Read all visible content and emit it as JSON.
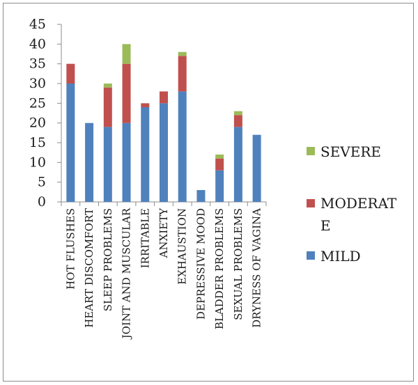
{
  "chart_data": {
    "type": "bar",
    "stacked": true,
    "categories": [
      "HOT FLUSHES",
      "HEART DISCOMFORT",
      "SLEEP PROBLEMS",
      "JOINT AND MUSCULAR",
      "IRRITABLE",
      "ANXIETY",
      "EXHAUSTION",
      "DEPRESSIVE MOOD",
      "BLADDER PROBLEMS",
      "SEXUAL PROBLEMS",
      "DRYNESS OF VAGINA"
    ],
    "series": [
      {
        "name": "MILD",
        "color": "#4F81BD",
        "values": [
          30,
          20,
          19,
          20,
          24,
          25,
          28,
          3,
          8,
          19,
          17
        ]
      },
      {
        "name": "MODERATE",
        "color": "#C0504D",
        "values": [
          5,
          0,
          10,
          15,
          1,
          3,
          9,
          0,
          3,
          3,
          0
        ]
      },
      {
        "name": "SEVERE",
        "color": "#9BBB59",
        "values": [
          0,
          0,
          1,
          5,
          0,
          0,
          1,
          0,
          1,
          1,
          0
        ]
      }
    ],
    "ylim": [
      0,
      45
    ],
    "yticks": [
      0,
      5,
      10,
      15,
      20,
      25,
      30,
      35,
      40,
      45
    ],
    "grid": false,
    "legend_position": "right",
    "legend": [
      {
        "label": "SEVERE",
        "color": "#9BBB59"
      },
      {
        "label_line1": "MODERAT",
        "label_line2": "E",
        "color": "#C0504D"
      },
      {
        "label": "MILD",
        "color": "#4F81BD"
      }
    ],
    "title": "",
    "xlabel": "",
    "ylabel": ""
  }
}
